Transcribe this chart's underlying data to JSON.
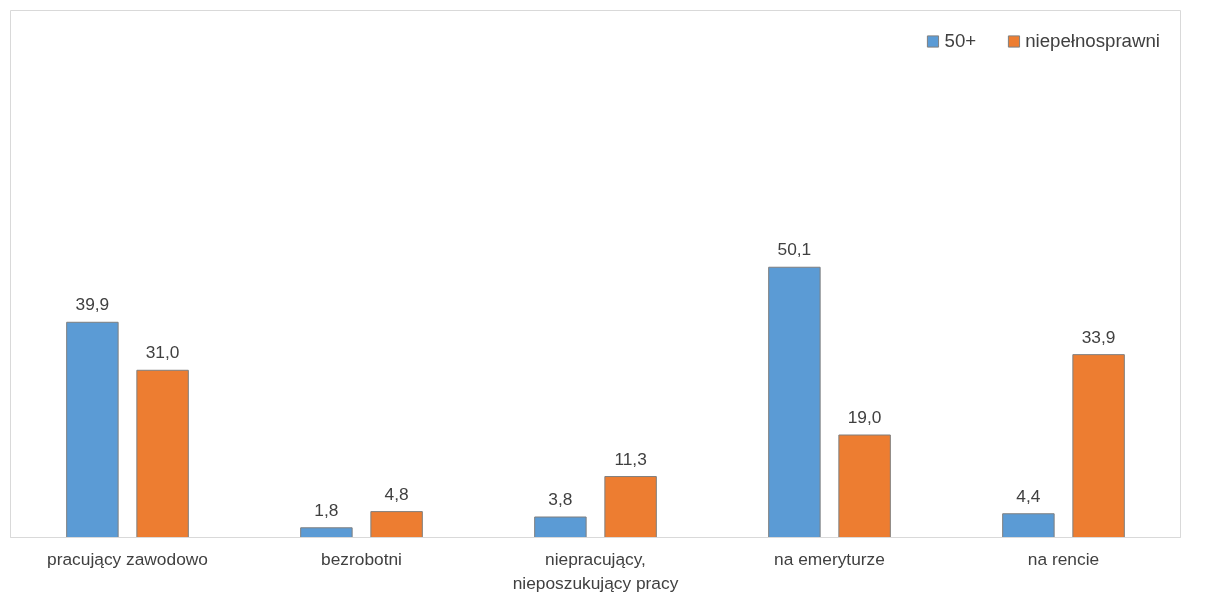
{
  "chart_data": {
    "type": "bar",
    "categories": [
      "pracujący zawodowo",
      "bezrobotni",
      "niepracujący,\nnieposzukujący pracy",
      "na emeryturze",
      "na rencie"
    ],
    "series": [
      {
        "name": "50+",
        "color": "#5b9bd5",
        "values": [
          39.9,
          1.8,
          3.8,
          50.1,
          4.4
        ],
        "value_labels": [
          "39,9",
          "1,8",
          "3,8",
          "50,1",
          "4,4"
        ]
      },
      {
        "name": "niepełnosprawni",
        "color": "#ed7d31",
        "values": [
          31.0,
          4.8,
          11.3,
          19.0,
          33.9
        ],
        "value_labels": [
          "31,0",
          "4,8",
          "11,3",
          "19,0",
          "33,9"
        ]
      }
    ],
    "grid": false,
    "legend": "top right"
  }
}
